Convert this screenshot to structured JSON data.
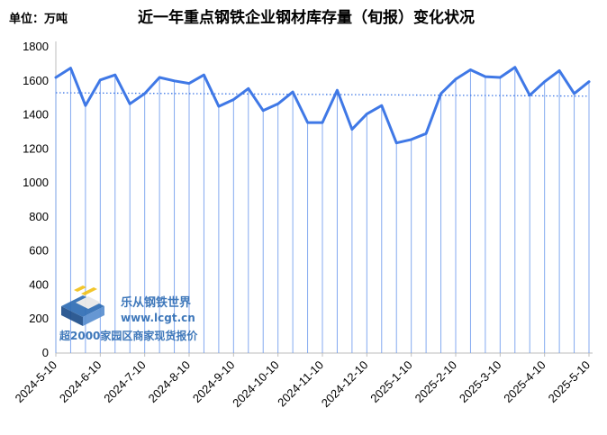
{
  "chart_data": {
    "type": "area",
    "title": "近一年重点钢铁企业钢材库存量（旬报）变化状况",
    "unit_label": "单位：万吨",
    "ylim": [
      0,
      1800
    ],
    "yticks": [
      0,
      200,
      400,
      600,
      800,
      1000,
      1200,
      1400,
      1600,
      1800
    ],
    "x_tick_labels": [
      "2024-5-10",
      "2024-6-10",
      "2024-7-10",
      "2024-8-10",
      "2024-9-10",
      "2024-10-10",
      "2024-11-10",
      "2024-12-10",
      "2025-1-10",
      "2025-2-10",
      "2025-3-10",
      "2025-4-10",
      "2025-5-10"
    ],
    "series": [
      {
        "values": [
          1620,
          1675,
          1455,
          1605,
          1635,
          1465,
          1525,
          1620,
          1600,
          1585,
          1635,
          1450,
          1490,
          1555,
          1425,
          1465,
          1535,
          1355,
          1355,
          1545,
          1315,
          1405,
          1455,
          1235,
          1255,
          1290,
          1525,
          1610,
          1665,
          1625,
          1620,
          1680,
          1515,
          1595,
          1660,
          1525,
          1595
        ],
        "color": "#3f78e6"
      }
    ],
    "trendline": {
      "start": 1530,
      "end": 1510,
      "color": "#3f78e6",
      "style": "dotted"
    },
    "grid": false,
    "legend": "none"
  },
  "watermark": {
    "name": "乐从钢铁世界",
    "url": "www.lcgt.cn",
    "slogan": "超2000家园区商家现货报价"
  }
}
